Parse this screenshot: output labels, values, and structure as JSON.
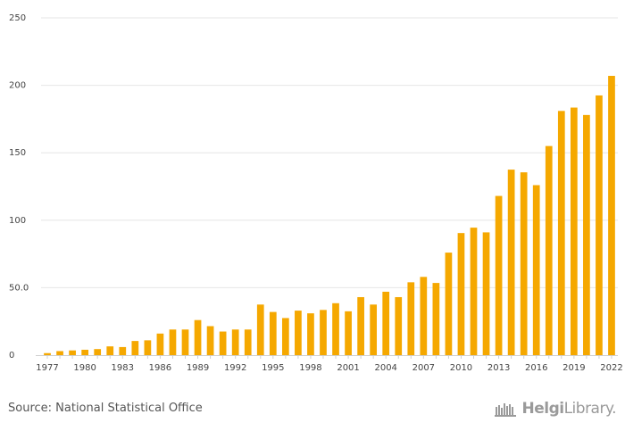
{
  "chart_data": {
    "type": "bar",
    "title": "",
    "xlabel": "",
    "ylabel": "",
    "ylim": [
      0,
      250
    ],
    "yticks": [
      "0",
      "50.0",
      "100",
      "150",
      "200",
      "250"
    ],
    "ytick_values": [
      0,
      50,
      100,
      150,
      200,
      250
    ],
    "xtick_labels": [
      "1977",
      "1980",
      "1983",
      "1986",
      "1989",
      "1992",
      "1995",
      "1998",
      "2001",
      "2004",
      "2007",
      "2010",
      "2013",
      "2016",
      "2019",
      "2022"
    ],
    "grid": true,
    "bar_color": "#f5a800",
    "categories": [
      "1977",
      "1978",
      "1979",
      "1980",
      "1981",
      "1982",
      "1983",
      "1984",
      "1985",
      "1986",
      "1987",
      "1988",
      "1989",
      "1990",
      "1991",
      "1992",
      "1993",
      "1994",
      "1995",
      "1996",
      "1997",
      "1998",
      "1999",
      "2000",
      "2001",
      "2002",
      "2003",
      "2004",
      "2005",
      "2006",
      "2007",
      "2008",
      "2009",
      "2010",
      "2011",
      "2012",
      "2013",
      "2014",
      "2015",
      "2016",
      "2017",
      "2018",
      "2019",
      "2020",
      "2021",
      "2022"
    ],
    "values": [
      1.5,
      3,
      3.5,
      4,
      4.5,
      6.5,
      6,
      10.5,
      11,
      16,
      19,
      19,
      26,
      21.5,
      17.5,
      19,
      19,
      37.5,
      32,
      27.5,
      33,
      31,
      33.5,
      38.5,
      32.5,
      43,
      37.5,
      47,
      43,
      54,
      58,
      53.5,
      76,
      90.5,
      94.5,
      91,
      118,
      137.5,
      135.5,
      126,
      155,
      181,
      183.5,
      178,
      192.5,
      207
    ]
  },
  "footer": {
    "source": "Source: National Statistical Office",
    "brand_bold": "Helgi",
    "brand_light": "Library."
  }
}
